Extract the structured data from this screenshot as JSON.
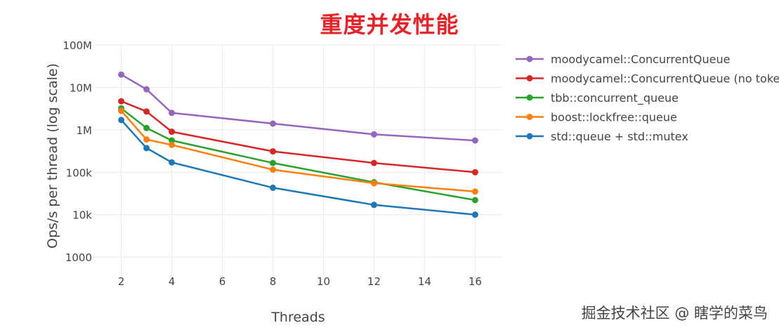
{
  "title": "重度并发性能",
  "watermark": "掘金技术社区 @ 瞎学的菜鸟",
  "chart_data": {
    "type": "line",
    "xlabel": "Threads",
    "ylabel": "Ops/s per thread (log scale)",
    "yscale": "log",
    "xlim": [
      0.9,
      17.1
    ],
    "ylim": [
      320,
      100000000
    ],
    "x_ticks": [
      2,
      4,
      6,
      8,
      10,
      12,
      14,
      16
    ],
    "y_ticks": [
      {
        "value": 1000,
        "label": "1000"
      },
      {
        "value": 10000,
        "label": "10k"
      },
      {
        "value": 100000,
        "label": "100k"
      },
      {
        "value": 1000000,
        "label": "1M"
      },
      {
        "value": 10000000,
        "label": "10M"
      },
      {
        "value": 100000000,
        "label": "100M"
      }
    ],
    "grid": true,
    "legend_position": "right",
    "x": [
      2,
      3,
      4,
      8,
      12,
      16
    ],
    "series": [
      {
        "name": "moodycamel::ConcurrentQueue",
        "color": "#9467bd",
        "values": [
          20000000,
          9000000,
          2500000,
          1400000,
          780000,
          560000
        ]
      },
      {
        "name": "moodycamel::ConcurrentQueue (no tokens)",
        "color": "#d62728",
        "values": [
          4700000,
          2700000,
          900000,
          310000,
          165000,
          100000
        ]
      },
      {
        "name": "tbb::concurrent_queue",
        "color": "#2ca02c",
        "values": [
          3200000,
          1100000,
          560000,
          165000,
          58000,
          22000
        ]
      },
      {
        "name": "boost::lockfree::queue",
        "color": "#ff7f0e",
        "values": [
          2800000,
          590000,
          440000,
          115000,
          55000,
          35000
        ]
      },
      {
        "name": "std::queue + std::mutex",
        "color": "#1f77b4",
        "values": [
          1700000,
          370000,
          170000,
          43000,
          17000,
          10000
        ]
      }
    ]
  }
}
